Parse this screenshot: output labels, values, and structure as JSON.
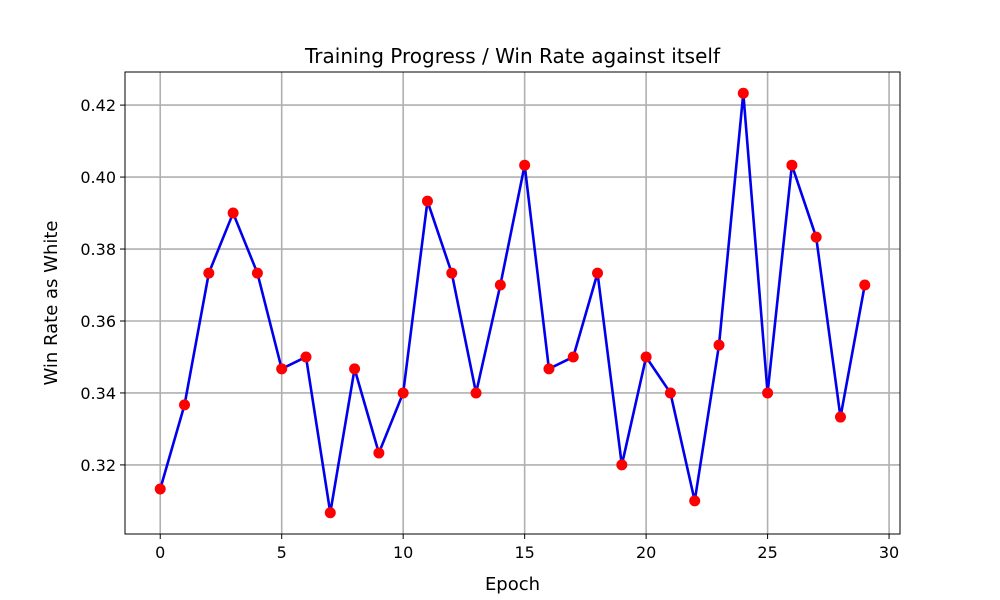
{
  "chart_data": {
    "type": "line",
    "title": "Training Progress / Win Rate against itself",
    "xlabel": "Epoch",
    "ylabel": "Win Rate as White",
    "x": [
      0,
      1,
      2,
      3,
      4,
      5,
      6,
      7,
      8,
      9,
      10,
      11,
      12,
      13,
      14,
      15,
      16,
      17,
      18,
      19,
      20,
      21,
      22,
      23,
      24,
      25,
      26,
      27,
      28,
      29
    ],
    "series": [
      {
        "values": [
          0.3133,
          0.3367,
          0.3733,
          0.39,
          0.3733,
          0.3467,
          0.35,
          0.3067,
          0.3467,
          0.3233,
          0.34,
          0.3933,
          0.3733,
          0.34,
          0.37,
          0.4033,
          0.3467,
          0.35,
          0.3733,
          0.32,
          0.35,
          0.34,
          0.31,
          0.3533,
          0.4233,
          0.34,
          0.4033,
          0.3833,
          0.3333,
          0.37
        ],
        "line_color": "#0000ee",
        "marker_color": "#ff0000"
      }
    ],
    "xlim": [
      -1.45,
      30.45
    ],
    "ylim": [
      0.3008,
      0.4292
    ],
    "xticks": [
      "0",
      "5",
      "10",
      "15",
      "20",
      "25",
      "30"
    ],
    "yticks": [
      "0.32",
      "0.34",
      "0.36",
      "0.38",
      "0.40",
      "0.42"
    ],
    "grid": true
  }
}
